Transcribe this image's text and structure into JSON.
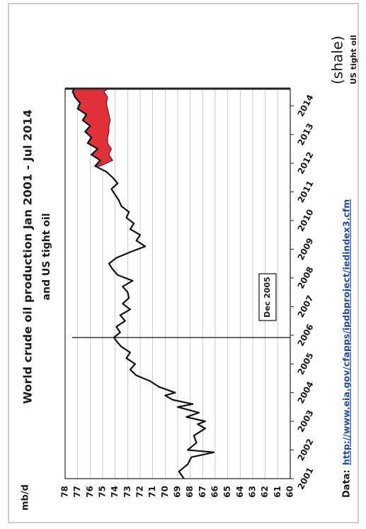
{
  "chart_data": {
    "type": "line",
    "title": "World crude oil production Jan 2001 - Jul 2014",
    "subtitle": "and US tight oil",
    "y_label": "mb/d",
    "source_label": "Data:",
    "source_url": "http://www.eia.gov/cfapps/ipdbproject/iedindex3.cfm",
    "xlim": [
      2001,
      2014.6
    ],
    "xticks": [
      2001,
      2002,
      2003,
      2004,
      2005,
      2006,
      2007,
      2008,
      2009,
      2010,
      2011,
      2012,
      2013,
      2014
    ],
    "ylim": [
      60,
      78
    ],
    "yticks": [
      60,
      61,
      62,
      63,
      64,
      65,
      66,
      67,
      68,
      69,
      70,
      71,
      72,
      73,
      74,
      75,
      76,
      77,
      78
    ],
    "grid": true,
    "series": [
      {
        "name": null,
        "color": "#111111",
        "x": [
          2001.0,
          2001.25,
          2001.5,
          2001.75,
          2001.92,
          2002.0,
          2002.25,
          2002.5,
          2002.75,
          2002.9,
          2003.0,
          2003.15,
          2003.3,
          2003.5,
          2003.6,
          2003.75,
          2003.9,
          2004.0,
          2004.2,
          2004.4,
          2004.6,
          2004.8,
          2005.0,
          2005.2,
          2005.4,
          2005.6,
          2005.8,
          2005.92,
          2006.1,
          2006.3,
          2006.5,
          2006.7,
          2006.9,
          2007.1,
          2007.3,
          2007.5,
          2007.7,
          2007.9,
          2008.1,
          2008.3,
          2008.5,
          2008.7,
          2008.9,
          2009.1,
          2009.3,
          2009.5,
          2009.7,
          2009.9,
          2010.1,
          2010.3,
          2010.5,
          2010.7,
          2010.9,
          2011.1,
          2011.3,
          2011.5,
          2011.7,
          2011.9,
          2012.1,
          2012.3,
          2012.5,
          2012.7,
          2012.9,
          2013.1,
          2013.3,
          2013.5,
          2013.7,
          2013.9,
          2014.1,
          2014.3,
          2014.5,
          2014.58
        ],
        "values": [
          68.5,
          68.9,
          68.2,
          67.9,
          66.1,
          68.2,
          67.5,
          67.7,
          66.8,
          67.4,
          66.8,
          68.3,
          67.3,
          69.0,
          67.8,
          69.4,
          70.0,
          69.2,
          70.5,
          71.2,
          72.3,
          72.8,
          72.4,
          73.1,
          72.8,
          73.5,
          73.9,
          74.1,
          73.6,
          73.9,
          73.2,
          73.6,
          72.8,
          73.4,
          72.9,
          73.0,
          73.4,
          72.6,
          73.8,
          74.2,
          74.5,
          73.9,
          72.8,
          71.6,
          72.3,
          72.0,
          72.8,
          72.5,
          73.1,
          72.9,
          73.5,
          73.7,
          74.0,
          74.3,
          73.8,
          74.2,
          74.7,
          75.6,
          75.2,
          75.9,
          75.4,
          76.2,
          75.9,
          76.4,
          76.0,
          76.6,
          76.3,
          77.0,
          76.8,
          77.2,
          77.4,
          77.3
        ]
      },
      {
        "name": "US tight oil",
        "color": "#e0303a",
        "x": [
          2011.9,
          2012.1,
          2012.3,
          2012.5,
          2012.7,
          2012.9,
          2013.1,
          2013.3,
          2013.5,
          2013.7,
          2013.9,
          2014.1,
          2014.3,
          2014.5,
          2014.58
        ],
        "values": [
          0.4,
          1.0,
          1.4,
          1.1,
          1.6,
          1.3,
          1.9,
          1.5,
          2.2,
          1.8,
          2.4,
          2.1,
          2.6,
          2.5,
          2.7
        ]
      }
    ],
    "series_note": "(shale)",
    "annotation": {
      "x": 2005.92,
      "label": "Dec 2005"
    }
  }
}
